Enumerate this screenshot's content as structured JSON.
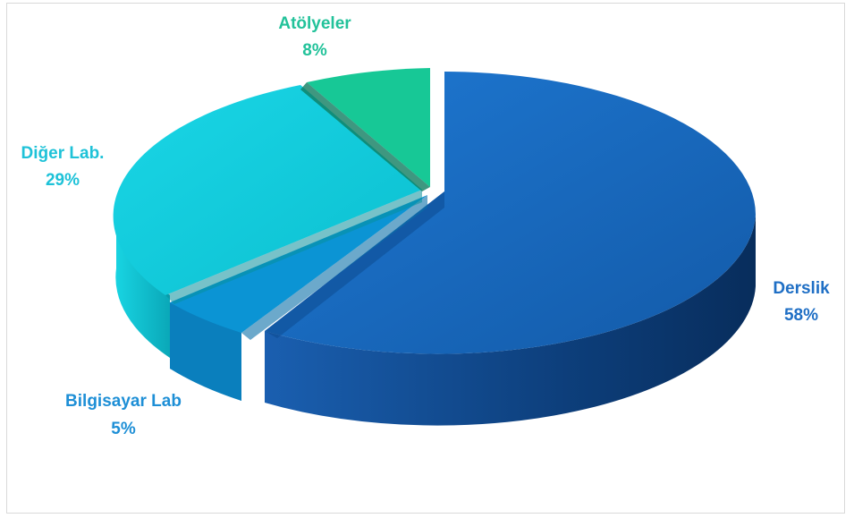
{
  "chart_data": {
    "type": "pie",
    "style": "3d-exploded",
    "slices": [
      {
        "label": "Derslik",
        "value": 58,
        "value_label": "58%",
        "color": "#1565c0",
        "label_color": "#1f6fc5"
      },
      {
        "label": "Bilgisayar Lab",
        "value": 5,
        "value_label": "5%",
        "color": "#0a8fd0",
        "label_color": "#1e8fd6"
      },
      {
        "label": "Diğer Lab.",
        "value": 29,
        "value_label": "29%",
        "color": "#12c6d6",
        "label_color": "#1ec2d8"
      },
      {
        "label": "Atölyeler",
        "value": 8,
        "value_label": "8%",
        "color": "#19c99a",
        "label_color": "#22c29a"
      }
    ]
  }
}
